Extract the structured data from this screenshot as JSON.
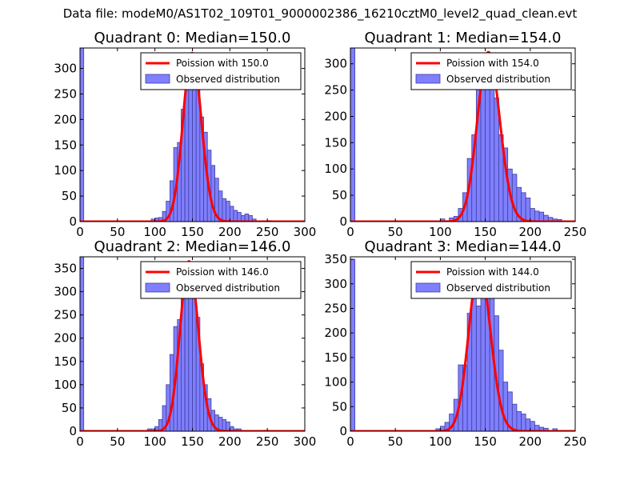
{
  "figure": {
    "suptitle": "Data file: modeM0/AS1T02_109T01_9000002386_16210cztM0_level2_quad_clean.evt"
  },
  "colors": {
    "bars_fill": "#7f7fff",
    "bars_edge": "#3f3f9f",
    "poisson_line": "#ff0000",
    "axes": "#000000"
  },
  "chart_data": [
    {
      "type": "histogram+line",
      "title": "Quadrant 0: Median=150.0",
      "legend": [
        "Poission with 150.0",
        "Observed distribution"
      ],
      "legend_loc": "top-right",
      "xlim": [
        0,
        300
      ],
      "ylim": [
        0,
        340
      ],
      "xticks": [
        0,
        50,
        100,
        150,
        200,
        250,
        300
      ],
      "yticks": [
        0,
        50,
        100,
        150,
        200,
        250,
        300
      ],
      "bin_width": 5,
      "bins": [
        [
          0,
          340
        ],
        [
          95,
          5
        ],
        [
          100,
          7
        ],
        [
          105,
          8
        ],
        [
          110,
          20
        ],
        [
          115,
          40
        ],
        [
          120,
          80
        ],
        [
          125,
          145
        ],
        [
          130,
          155
        ],
        [
          135,
          220
        ],
        [
          140,
          300
        ],
        [
          145,
          328
        ],
        [
          150,
          320
        ],
        [
          155,
          260
        ],
        [
          160,
          205
        ],
        [
          165,
          175
        ],
        [
          170,
          140
        ],
        [
          175,
          110
        ],
        [
          180,
          85
        ],
        [
          185,
          60
        ],
        [
          190,
          45
        ],
        [
          195,
          40
        ],
        [
          200,
          30
        ],
        [
          205,
          22
        ],
        [
          210,
          18
        ],
        [
          215,
          12
        ],
        [
          220,
          15
        ],
        [
          225,
          12
        ],
        [
          230,
          5
        ],
        [
          250,
          2
        ]
      ],
      "poisson_mean": 150,
      "poisson_peak": 330
    },
    {
      "type": "histogram+line",
      "title": "Quadrant 1: Median=154.0",
      "legend": [
        "Poission with 154.0",
        "Observed distribution"
      ],
      "legend_loc": "top-right",
      "xlim": [
        0,
        250
      ],
      "ylim": [
        0,
        330
      ],
      "xticks": [
        0,
        50,
        100,
        150,
        200,
        250
      ],
      "yticks": [
        0,
        50,
        100,
        150,
        200,
        250,
        300
      ],
      "bin_width": 5,
      "bins": [
        [
          0,
          330
        ],
        [
          100,
          5
        ],
        [
          110,
          7
        ],
        [
          115,
          10
        ],
        [
          120,
          25
        ],
        [
          125,
          55
        ],
        [
          130,
          120
        ],
        [
          135,
          165
        ],
        [
          140,
          255
        ],
        [
          145,
          310
        ],
        [
          150,
          300
        ],
        [
          155,
          280
        ],
        [
          160,
          235
        ],
        [
          165,
          165
        ],
        [
          170,
          140
        ],
        [
          175,
          100
        ],
        [
          180,
          90
        ],
        [
          185,
          65
        ],
        [
          190,
          55
        ],
        [
          195,
          45
        ],
        [
          200,
          25
        ],
        [
          205,
          20
        ],
        [
          210,
          18
        ],
        [
          215,
          12
        ],
        [
          220,
          8
        ],
        [
          225,
          5
        ],
        [
          230,
          4
        ]
      ],
      "poisson_mean": 154,
      "poisson_peak": 322
    },
    {
      "type": "histogram+line",
      "title": "Quadrant 2: Median=146.0",
      "legend": [
        "Poission with 146.0",
        "Observed distribution"
      ],
      "legend_loc": "top-right",
      "xlim": [
        0,
        300
      ],
      "ylim": [
        0,
        375
      ],
      "xticks": [
        0,
        50,
        100,
        150,
        200,
        250,
        300
      ],
      "yticks": [
        0,
        50,
        100,
        150,
        200,
        250,
        300,
        350
      ],
      "bin_width": 5,
      "bins": [
        [
          0,
          375
        ],
        [
          90,
          5
        ],
        [
          95,
          5
        ],
        [
          100,
          10
        ],
        [
          105,
          25
        ],
        [
          110,
          55
        ],
        [
          115,
          100
        ],
        [
          120,
          165
        ],
        [
          125,
          225
        ],
        [
          130,
          240
        ],
        [
          135,
          325
        ],
        [
          140,
          340
        ],
        [
          145,
          290
        ],
        [
          150,
          285
        ],
        [
          155,
          245
        ],
        [
          160,
          145
        ],
        [
          165,
          100
        ],
        [
          170,
          70
        ],
        [
          175,
          45
        ],
        [
          180,
          35
        ],
        [
          185,
          30
        ],
        [
          190,
          25
        ],
        [
          195,
          20
        ],
        [
          200,
          10
        ],
        [
          205,
          5
        ],
        [
          210,
          5
        ],
        [
          245,
          2
        ]
      ],
      "poisson_mean": 146,
      "poisson_peak": 365
    },
    {
      "type": "histogram+line",
      "title": "Quadrant 3: Median=144.0",
      "legend": [
        "Poission with 144.0",
        "Observed distribution"
      ],
      "legend_loc": "top-right",
      "xlim": [
        0,
        250
      ],
      "ylim": [
        0,
        355
      ],
      "xticks": [
        0,
        50,
        100,
        150,
        200,
        250
      ],
      "yticks": [
        0,
        50,
        100,
        150,
        200,
        250,
        300,
        350
      ],
      "bin_width": 5,
      "bins": [
        [
          0,
          350
        ],
        [
          95,
          5
        ],
        [
          100,
          10
        ],
        [
          105,
          18
        ],
        [
          110,
          35
        ],
        [
          115,
          65
        ],
        [
          120,
          135
        ],
        [
          125,
          135
        ],
        [
          130,
          240
        ],
        [
          135,
          320
        ],
        [
          140,
          255
        ],
        [
          145,
          310
        ],
        [
          150,
          315
        ],
        [
          155,
          275
        ],
        [
          160,
          235
        ],
        [
          165,
          165
        ],
        [
          170,
          100
        ],
        [
          175,
          80
        ],
        [
          180,
          55
        ],
        [
          185,
          40
        ],
        [
          190,
          35
        ],
        [
          195,
          25
        ],
        [
          200,
          20
        ],
        [
          205,
          12
        ],
        [
          210,
          8
        ],
        [
          215,
          6
        ],
        [
          225,
          5
        ]
      ],
      "poisson_mean": 144,
      "poisson_peak": 338
    }
  ]
}
